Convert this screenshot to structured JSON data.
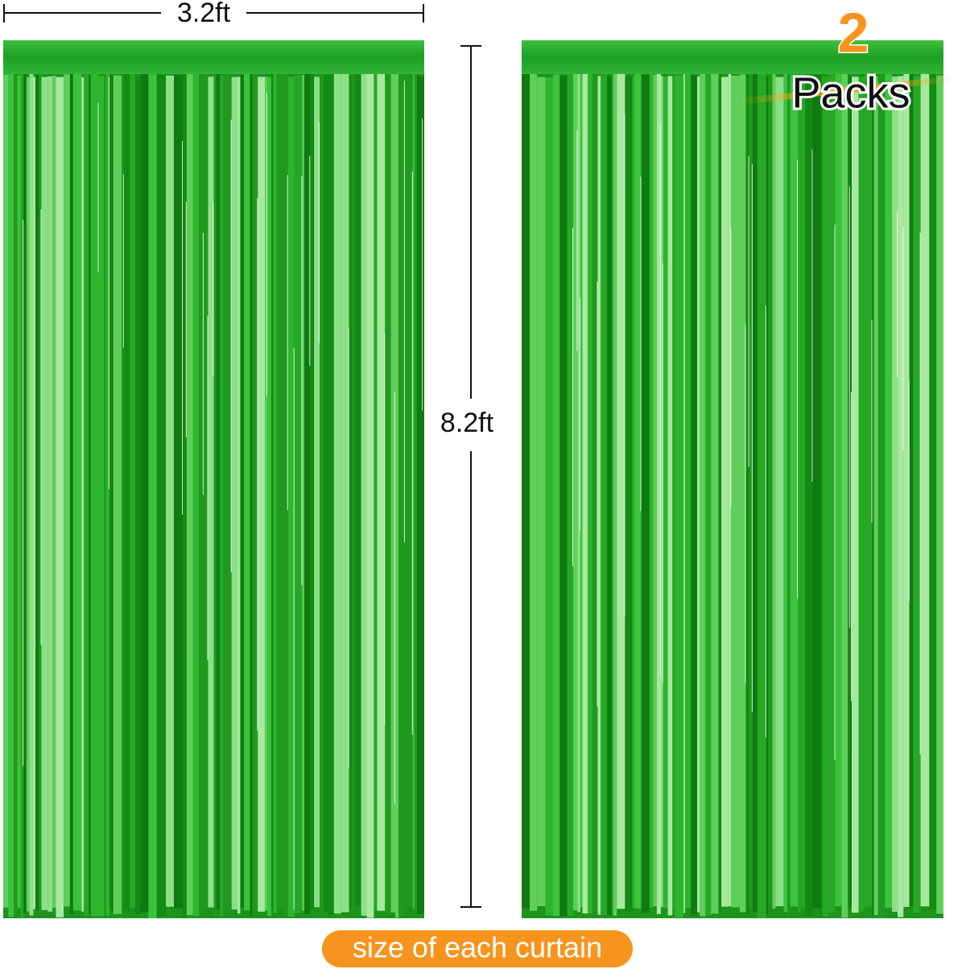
{
  "dimensions": {
    "width": "3.2ft",
    "height": "8.2ft"
  },
  "badge": {
    "count": "2",
    "unit": "Packs"
  },
  "caption": "size of each curtain"
}
